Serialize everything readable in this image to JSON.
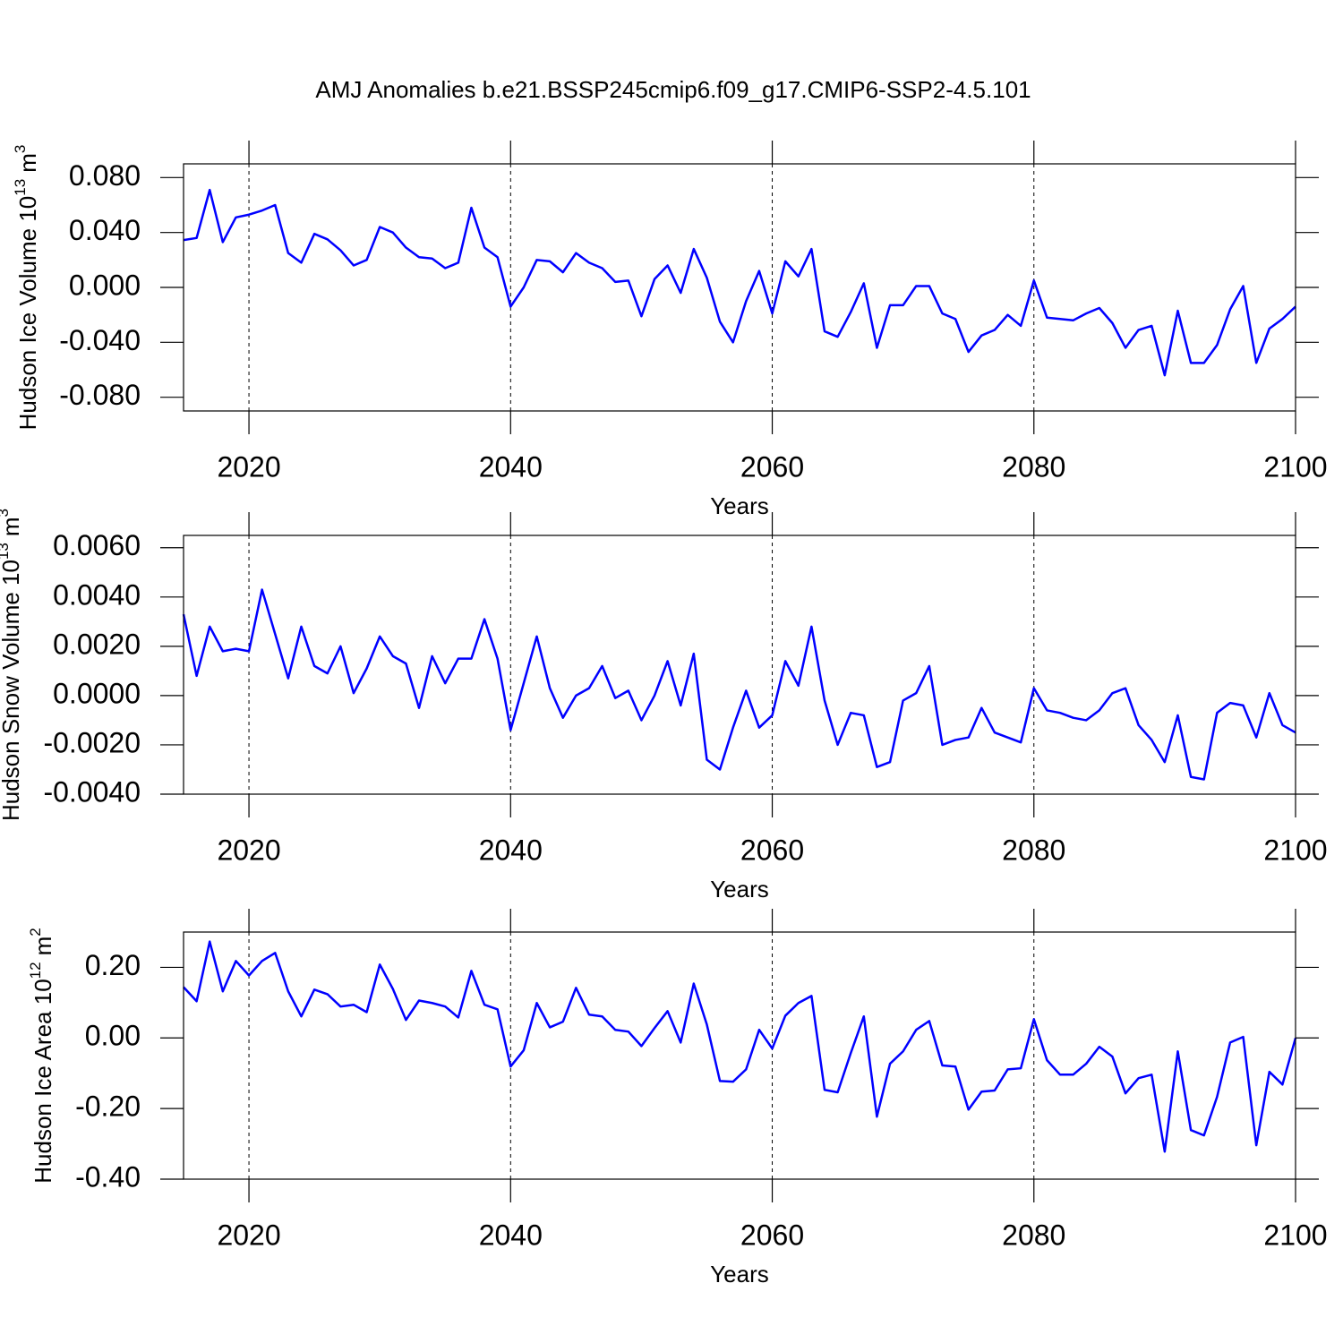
{
  "title": "AMJ Anomalies b.e21.BSSP245cmip6.f09_g17.CMIP6-SSP2-4.5.101",
  "chart_data": [
    {
      "type": "line",
      "ylabel": [
        "Hudson Ice Volume 10",
        "13",
        "m",
        "3"
      ],
      "xlabel": "Years",
      "x": [
        2015,
        2016,
        2017,
        2018,
        2019,
        2020,
        2021,
        2022,
        2023,
        2024,
        2025,
        2026,
        2027,
        2028,
        2029,
        2030,
        2031,
        2032,
        2033,
        2034,
        2035,
        2036,
        2037,
        2038,
        2039,
        2040,
        2041,
        2042,
        2043,
        2044,
        2045,
        2046,
        2047,
        2048,
        2049,
        2050,
        2051,
        2052,
        2053,
        2054,
        2055,
        2056,
        2057,
        2058,
        2059,
        2060,
        2061,
        2062,
        2063,
        2064,
        2065,
        2066,
        2067,
        2068,
        2069,
        2070,
        2071,
        2072,
        2073,
        2074,
        2075,
        2076,
        2077,
        2078,
        2079,
        2080,
        2081,
        2082,
        2083,
        2084,
        2085,
        2086,
        2087,
        2088,
        2089,
        2090,
        2091,
        2092,
        2093,
        2094,
        2095,
        2096,
        2097,
        2098,
        2099,
        2100
      ],
      "series": [
        {
          "color": "#0000ff",
          "values": [
            0.0345,
            0.036,
            0.071,
            0.033,
            0.051,
            0.053,
            0.056,
            0.06,
            0.025,
            0.018,
            0.039,
            0.035,
            0.027,
            0.016,
            0.02,
            0.044,
            0.04,
            0.029,
            0.022,
            0.021,
            0.014,
            0.018,
            0.058,
            0.029,
            0.022,
            -0.014,
            0.0,
            0.02,
            0.019,
            0.011,
            0.025,
            0.018,
            0.014,
            0.004,
            0.005,
            -0.021,
            0.006,
            0.016,
            -0.004,
            0.028,
            0.007,
            -0.025,
            -0.04,
            -0.01,
            0.012,
            -0.019,
            0.019,
            0.008,
            0.028,
            -0.032,
            -0.036,
            -0.018,
            0.003,
            -0.044,
            -0.013,
            -0.013,
            0.001,
            0.001,
            -0.019,
            -0.023,
            -0.047,
            -0.035,
            -0.031,
            -0.02,
            -0.028,
            0.005,
            -0.022,
            -0.023,
            -0.024,
            -0.019,
            -0.015,
            -0.026,
            -0.044,
            -0.031,
            -0.028,
            -0.064,
            -0.017,
            -0.055,
            -0.055,
            -0.042,
            -0.016,
            0.001,
            -0.055,
            -0.03,
            -0.023,
            -0.014
          ]
        }
      ],
      "xlim": [
        2015,
        2100
      ],
      "ylim": [
        -0.09,
        0.09
      ],
      "xticks": [
        2020,
        2040,
        2060,
        2080,
        2100
      ],
      "yticks": [
        {
          "value": -0.08,
          "label": "-0.080"
        },
        {
          "value": -0.04,
          "label": "-0.040"
        },
        {
          "value": 0,
          "label": "0.000"
        },
        {
          "value": 0.04,
          "label": "0.040"
        },
        {
          "value": 0.08,
          "label": "0.080"
        }
      ],
      "x_grid": true
    },
    {
      "type": "line",
      "ylabel": [
        "Hudson Snow Volume 10",
        "13",
        "m",
        "3"
      ],
      "xlabel": "Years",
      "x": [
        2015,
        2016,
        2017,
        2018,
        2019,
        2020,
        2021,
        2022,
        2023,
        2024,
        2025,
        2026,
        2027,
        2028,
        2029,
        2030,
        2031,
        2032,
        2033,
        2034,
        2035,
        2036,
        2037,
        2038,
        2039,
        2040,
        2041,
        2042,
        2043,
        2044,
        2045,
        2046,
        2047,
        2048,
        2049,
        2050,
        2051,
        2052,
        2053,
        2054,
        2055,
        2056,
        2057,
        2058,
        2059,
        2060,
        2061,
        2062,
        2063,
        2064,
        2065,
        2066,
        2067,
        2068,
        2069,
        2070,
        2071,
        2072,
        2073,
        2074,
        2075,
        2076,
        2077,
        2078,
        2079,
        2080,
        2081,
        2082,
        2083,
        2084,
        2085,
        2086,
        2087,
        2088,
        2089,
        2090,
        2091,
        2092,
        2093,
        2094,
        2095,
        2096,
        2097,
        2098,
        2099,
        2100
      ],
      "series": [
        {
          "color": "#0000ff",
          "values": [
            0.0033,
            0.0008,
            0.0028,
            0.0018,
            0.0019,
            0.0018,
            0.0043,
            0.0025,
            0.0007,
            0.0028,
            0.0012,
            0.0009,
            0.002,
            0.0001,
            0.0011,
            0.0024,
            0.0016,
            0.0013,
            -0.0005,
            0.0016,
            0.0005,
            0.0015,
            0.0015,
            0.0031,
            0.0015,
            -0.0014,
            0.0005,
            0.0024,
            0.0003,
            -0.0009,
            0.0,
            0.0003,
            0.0012,
            -0.0001,
            0.0002,
            -0.001,
            0.0,
            0.0014,
            -0.0004,
            0.0017,
            -0.0026,
            -0.003,
            -0.0013,
            0.0002,
            -0.0013,
            -0.0008,
            0.0014,
            0.0004,
            0.0028,
            -0.0002,
            -0.002,
            -0.0007,
            -0.0008,
            -0.0029,
            -0.0027,
            -0.0002,
            0.0001,
            0.0012,
            -0.002,
            -0.0018,
            -0.0017,
            -0.0005,
            -0.0015,
            -0.0017,
            -0.0019,
            0.0003,
            -0.0006,
            -0.0007,
            -0.0009,
            -0.001,
            -0.0006,
            0.0001,
            0.0003,
            -0.0012,
            -0.0018,
            -0.0027,
            -0.0008,
            -0.0033,
            -0.0034,
            -0.0007,
            -0.0003,
            -0.0004,
            -0.0017,
            0.0001,
            -0.0012,
            -0.0015
          ]
        }
      ],
      "xlim": [
        2015,
        2100
      ],
      "ylim": [
        -0.004,
        0.0065
      ],
      "xticks": [
        2020,
        2040,
        2060,
        2080,
        2100
      ],
      "yticks": [
        {
          "value": -0.004,
          "label": "-0.0040"
        },
        {
          "value": -0.002,
          "label": "-0.0020"
        },
        {
          "value": 0,
          "label": "0.0000"
        },
        {
          "value": 0.002,
          "label": "0.0020"
        },
        {
          "value": 0.004,
          "label": "0.0040"
        },
        {
          "value": 0.006,
          "label": "0.0060"
        }
      ],
      "x_grid": true
    },
    {
      "type": "line",
      "ylabel": [
        "Hudson Ice Area 10",
        "12",
        "m",
        "2"
      ],
      "xlabel": "Years",
      "x": [
        2015,
        2016,
        2017,
        2018,
        2019,
        2020,
        2021,
        2022,
        2023,
        2024,
        2025,
        2026,
        2027,
        2028,
        2029,
        2030,
        2031,
        2032,
        2033,
        2034,
        2035,
        2036,
        2037,
        2038,
        2039,
        2040,
        2041,
        2042,
        2043,
        2044,
        2045,
        2046,
        2047,
        2048,
        2049,
        2050,
        2051,
        2052,
        2053,
        2054,
        2055,
        2056,
        2057,
        2058,
        2059,
        2060,
        2061,
        2062,
        2063,
        2064,
        2065,
        2066,
        2067,
        2068,
        2069,
        2070,
        2071,
        2072,
        2073,
        2074,
        2075,
        2076,
        2077,
        2078,
        2079,
        2080,
        2081,
        2082,
        2083,
        2084,
        2085,
        2086,
        2087,
        2088,
        2089,
        2090,
        2091,
        2092,
        2093,
        2094,
        2095,
        2096,
        2097,
        2098,
        2099,
        2100
      ],
      "series": [
        {
          "color": "#0000ff",
          "values": [
            0.144,
            0.104,
            0.273,
            0.132,
            0.218,
            0.177,
            0.218,
            0.241,
            0.132,
            0.061,
            0.137,
            0.124,
            0.089,
            0.094,
            0.073,
            0.208,
            0.139,
            0.051,
            0.106,
            0.099,
            0.089,
            0.058,
            0.19,
            0.094,
            0.081,
            -0.081,
            -0.035,
            0.099,
            0.03,
            0.046,
            0.142,
            0.066,
            0.061,
            0.023,
            0.018,
            -0.023,
            0.028,
            0.076,
            -0.013,
            0.154,
            0.038,
            -0.122,
            -0.124,
            -0.089,
            0.023,
            -0.03,
            0.063,
            0.099,
            0.119,
            -0.147,
            -0.154,
            -0.043,
            0.061,
            -0.223,
            -0.073,
            -0.038,
            0.023,
            0.048,
            -0.078,
            -0.081,
            -0.203,
            -0.152,
            -0.149,
            -0.089,
            -0.086,
            0.053,
            -0.063,
            -0.104,
            -0.104,
            -0.073,
            -0.025,
            -0.053,
            -0.157,
            -0.114,
            -0.104,
            -0.322,
            -0.038,
            -0.261,
            -0.276,
            -0.167,
            -0.013,
            0.003,
            -0.304,
            -0.096,
            -0.132,
            0.0
          ]
        }
      ],
      "xlim": [
        2015,
        2100
      ],
      "ylim": [
        -0.4,
        0.3
      ],
      "xticks": [
        2020,
        2040,
        2060,
        2080,
        2100
      ],
      "yticks": [
        {
          "value": -0.4,
          "label": "-0.40"
        },
        {
          "value": -0.2,
          "label": "-0.20"
        },
        {
          "value": 0,
          "label": "0.00"
        },
        {
          "value": 0.2,
          "label": "0.20"
        }
      ],
      "x_grid": true
    }
  ]
}
